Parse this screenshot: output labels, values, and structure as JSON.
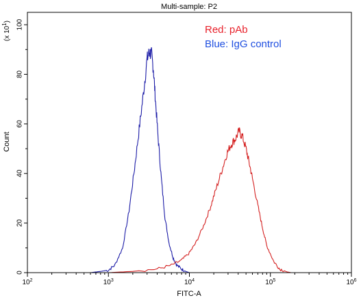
{
  "chart_data": {
    "type": "line",
    "title": "Multi-sample: P2",
    "xlabel": "FITC-A",
    "ylabel": "Count",
    "y_multiplier_label": "(x 10",
    "y_multiplier_exp": "1",
    "x_scale": "log",
    "xlim": [
      100,
      1000000
    ],
    "ylim": [
      0,
      105
    ],
    "x_ticks": [
      {
        "value": 100,
        "base": "10",
        "exp": "2"
      },
      {
        "value": 1000,
        "base": "10",
        "exp": "3"
      },
      {
        "value": 10000,
        "base": "10",
        "exp": "4"
      },
      {
        "value": 100000,
        "base": "10",
        "exp": "5"
      },
      {
        "value": 1000000,
        "base": "10",
        "exp": "6"
      }
    ],
    "y_ticks": [
      0,
      20,
      40,
      60,
      80,
      100
    ],
    "grid": false,
    "legend_position": "top-right",
    "legend": [
      {
        "text": "Red: pAb",
        "color": "#e8202a"
      },
      {
        "text": "Blue: IgG control",
        "color": "#1f4fe0"
      }
    ],
    "series": [
      {
        "color": "#1a1aa6",
        "x": [
          600,
          800,
          1000,
          1200,
          1500,
          1800,
          2100,
          2400,
          2700,
          3000,
          3200,
          3400,
          3600,
          3800,
          4100,
          4500,
          5000,
          5600,
          6300,
          7000,
          8000,
          9000,
          10000
        ],
        "y": [
          0,
          0.5,
          1,
          3,
          10,
          25,
          42,
          58,
          72,
          86,
          89,
          88,
          82,
          70,
          55,
          38,
          22,
          12,
          6,
          3,
          1.5,
          0.5,
          0
        ]
      },
      {
        "color": "#d42020",
        "x": [
          1000,
          2000,
          4000,
          6000,
          8000,
          10000,
          12000,
          15000,
          18000,
          21000,
          25000,
          29000,
          33000,
          37000,
          41000,
          45000,
          50000,
          55000,
          60000,
          70000,
          80000,
          90000,
          110000,
          130000,
          160000,
          180000
        ],
        "y": [
          0,
          0.5,
          1.5,
          3,
          5,
          8,
          12,
          19,
          26,
          33,
          41,
          48,
          52,
          54,
          57,
          55,
          50,
          44,
          38,
          27,
          18,
          11,
          4.5,
          1.5,
          0.3,
          0
        ]
      }
    ]
  }
}
